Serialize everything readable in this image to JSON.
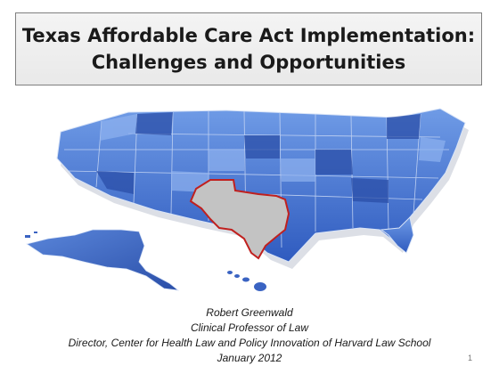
{
  "title": {
    "line1": "Texas Affordable Care Act Implementation:",
    "line2": "Challenges and Opportunities"
  },
  "map": {
    "highlight_label": "Texas",
    "colors": {
      "states": "#3f6fd1",
      "states_dark": "#2a4ea8",
      "texas_fill": "#bfbfbf",
      "texas_border": "#c0201e"
    }
  },
  "credits": {
    "name": "Robert Greenwald",
    "role": "Clinical Professor of Law",
    "affiliation": "Director, Center for Health Law and Policy Innovation of Harvard Law School",
    "date": "January 2012"
  },
  "slide_number": "1"
}
